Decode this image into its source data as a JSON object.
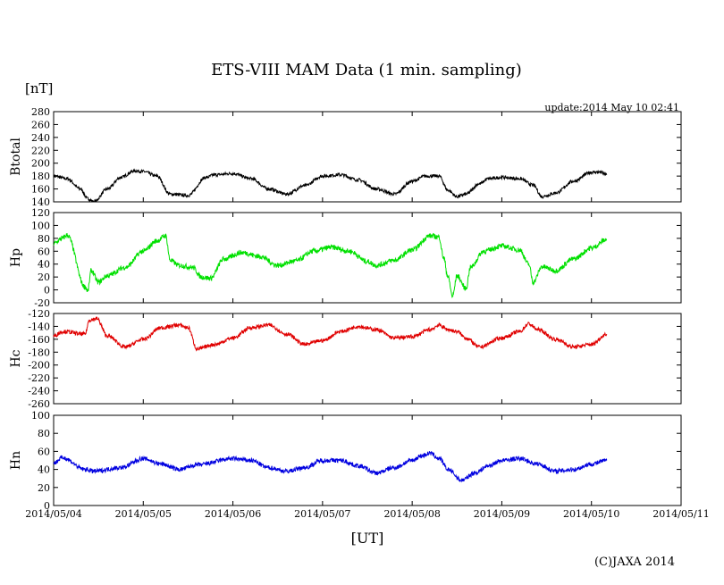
{
  "chart_data": {
    "type": "line",
    "title": "ETS-VIII MAM Data (1 min. sampling)",
    "unit_label": "[nT]",
    "update_text": "update:2014 May 10 02:41",
    "xlabel": "[UT]",
    "copyright": "(C)JAXA 2014",
    "x_ticks": [
      "2014/05/04",
      "2014/05/05",
      "2014/05/06",
      "2014/05/07",
      "2014/05/08",
      "2014/05/09",
      "2014/05/10",
      "2014/05/11"
    ],
    "xlim": [
      0,
      7
    ],
    "panels": [
      {
        "name": "Btotal",
        "color": "#000000",
        "ylim": [
          140,
          280
        ],
        "yticks": [
          140,
          160,
          180,
          200,
          220,
          240,
          260,
          280
        ],
        "noise": 2.5,
        "x": [
          0.0,
          0.15,
          0.3,
          0.38,
          0.45,
          0.6,
          0.75,
          0.9,
          1.0,
          1.15,
          1.3,
          1.5,
          1.7,
          1.8,
          2.0,
          2.2,
          2.4,
          2.6,
          2.8,
          3.0,
          3.2,
          3.4,
          3.6,
          3.8,
          4.0,
          4.15,
          4.3,
          4.4,
          4.5,
          4.6,
          4.75,
          4.85,
          5.0,
          5.2,
          5.35,
          5.45,
          5.5,
          5.6,
          5.8,
          6.0,
          6.1,
          6.17
        ],
        "y": [
          180,
          176,
          160,
          145,
          140,
          160,
          178,
          188,
          187,
          180,
          152,
          150,
          178,
          182,
          184,
          176,
          160,
          152,
          165,
          180,
          182,
          174,
          160,
          152,
          172,
          180,
          180,
          158,
          148,
          152,
          168,
          176,
          178,
          176,
          166,
          148,
          150,
          154,
          172,
          186,
          186,
          182
        ]
      },
      {
        "name": "Hp",
        "color": "#00e000",
        "ylim": [
          -20,
          120
        ],
        "yticks": [
          -20,
          0,
          20,
          40,
          60,
          80,
          100,
          120
        ],
        "noise": 4,
        "x": [
          0.0,
          0.1,
          0.15,
          0.35,
          0.38,
          0.42,
          0.5,
          0.6,
          0.8,
          1.0,
          1.15,
          1.25,
          1.3,
          1.4,
          1.55,
          1.65,
          1.75,
          1.9,
          2.1,
          2.3,
          2.5,
          2.7,
          2.9,
          3.1,
          3.3,
          3.5,
          3.6,
          3.8,
          4.0,
          4.2,
          4.3,
          4.35,
          4.4,
          4.45,
          4.5,
          4.6,
          4.65,
          4.8,
          5.0,
          5.2,
          5.3,
          5.35,
          5.45,
          5.6,
          5.8,
          6.0,
          6.17
        ],
        "y": [
          72,
          80,
          85,
          5,
          -2,
          30,
          12,
          22,
          35,
          60,
          76,
          84,
          46,
          38,
          35,
          20,
          18,
          48,
          58,
          52,
          38,
          45,
          60,
          66,
          60,
          44,
          38,
          46,
          62,
          84,
          82,
          50,
          20,
          -10,
          22,
          2,
          35,
          60,
          68,
          62,
          40,
          12,
          36,
          30,
          48,
          65,
          78
        ]
      },
      {
        "name": "Hc",
        "color": "#e00000",
        "ylim": [
          -260,
          -120
        ],
        "yticks": [
          -260,
          -240,
          -220,
          -200,
          -180,
          -160,
          -140,
          -120
        ],
        "noise": 3,
        "x": [
          0.0,
          0.1,
          0.35,
          0.4,
          0.48,
          0.6,
          0.8,
          1.0,
          1.2,
          1.4,
          1.5,
          1.6,
          1.8,
          2.0,
          2.2,
          2.4,
          2.6,
          2.8,
          3.0,
          3.2,
          3.4,
          3.6,
          3.8,
          4.0,
          4.2,
          4.3,
          4.4,
          4.5,
          4.6,
          4.75,
          5.0,
          5.2,
          5.3,
          5.4,
          5.6,
          5.8,
          6.0,
          6.17
        ],
        "y": [
          -155,
          -148,
          -152,
          -130,
          -128,
          -155,
          -172,
          -160,
          -142,
          -138,
          -142,
          -175,
          -168,
          -158,
          -142,
          -138,
          -152,
          -168,
          -162,
          -148,
          -140,
          -145,
          -158,
          -156,
          -145,
          -138,
          -145,
          -148,
          -158,
          -172,
          -158,
          -148,
          -136,
          -145,
          -160,
          -172,
          -168,
          -152
        ]
      },
      {
        "name": "Hn",
        "color": "#0000e0",
        "ylim": [
          0,
          100
        ],
        "yticks": [
          0,
          20,
          40,
          60,
          80,
          100
        ],
        "noise": 2.5,
        "x": [
          0.0,
          0.1,
          0.35,
          0.45,
          0.75,
          1.0,
          1.2,
          1.4,
          1.6,
          2.0,
          2.2,
          2.4,
          2.6,
          2.8,
          3.0,
          3.2,
          3.4,
          3.6,
          3.8,
          4.0,
          4.1,
          4.2,
          4.3,
          4.4,
          4.55,
          4.7,
          4.85,
          5.0,
          5.2,
          5.4,
          5.6,
          5.8,
          6.0,
          6.17
        ],
        "y": [
          47,
          53,
          40,
          38,
          42,
          52,
          46,
          40,
          45,
          52,
          50,
          42,
          38,
          42,
          50,
          50,
          44,
          36,
          42,
          50,
          55,
          58,
          52,
          40,
          28,
          36,
          44,
          50,
          52,
          46,
          38,
          40,
          46,
          50
        ]
      }
    ]
  }
}
